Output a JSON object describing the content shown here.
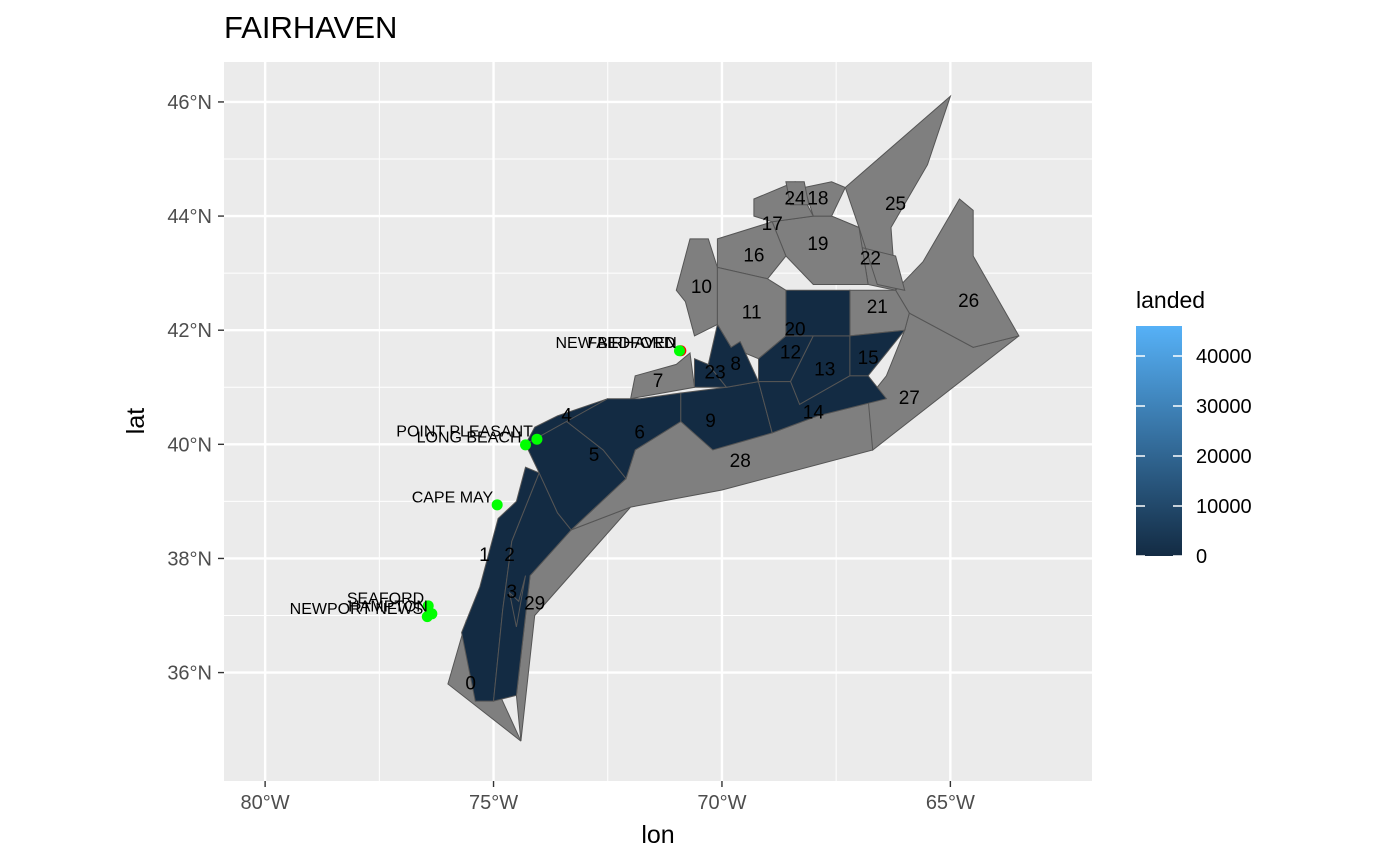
{
  "title": "FAIRHAVEN",
  "axes": {
    "xlabel": "lon",
    "ylabel": "lat",
    "xticks": [
      "80°W",
      "75°W",
      "70°W",
      "65°W"
    ],
    "yticks": [
      "36°N",
      "38°N",
      "40°N",
      "42°N",
      "44°N",
      "46°N"
    ],
    "xtick_values": [
      -80,
      -75,
      -70,
      -65
    ],
    "ytick_values": [
      36,
      38,
      40,
      42,
      44,
      46
    ],
    "xlim": [
      -80.9,
      -61.9
    ],
    "ylim": [
      34.1,
      46.7
    ]
  },
  "legend": {
    "title": "landed",
    "ticks": [
      "40000",
      "30000",
      "20000",
      "10000",
      "0"
    ],
    "tick_values": [
      40000,
      30000,
      20000,
      10000,
      0
    ],
    "range": [
      0,
      46000
    ],
    "color_low": "#132B43",
    "color_high": "#56B1F7"
  },
  "colors": {
    "panel_bg": "#EBEBEB",
    "grid": "#FFFFFF",
    "no_data_fill": "#7F7F7F",
    "area_border": "#555555",
    "home_port": "#FF0000",
    "other_port": "#00FF00"
  },
  "chart_data": {
    "type": "map",
    "title": "FAIRHAVEN",
    "xlabel": "lon",
    "ylabel": "lat",
    "grid": true,
    "legend_position": "right",
    "areas": [
      {
        "label": "0",
        "lon": -75.5,
        "lat": 35.8,
        "landed": null
      },
      {
        "label": "1",
        "lon": -75.2,
        "lat": 38.05,
        "landed": 0
      },
      {
        "label": "2",
        "lon": -74.65,
        "lat": 38.05,
        "landed": 0
      },
      {
        "label": "3",
        "lon": -74.6,
        "lat": 37.4,
        "landed": 0
      },
      {
        "label": "4",
        "lon": -73.4,
        "lat": 40.5,
        "landed": 0
      },
      {
        "label": "5",
        "lon": -72.8,
        "lat": 39.8,
        "landed": 0
      },
      {
        "label": "6",
        "lon": -71.8,
        "lat": 40.2,
        "landed": 0
      },
      {
        "label": "7",
        "lon": -71.4,
        "lat": 41.1,
        "landed": null
      },
      {
        "label": "8",
        "lon": -69.7,
        "lat": 41.4,
        "landed": 0
      },
      {
        "label": "9",
        "lon": -70.25,
        "lat": 40.4,
        "landed": 0
      },
      {
        "label": "10",
        "lon": -70.45,
        "lat": 42.75,
        "landed": null
      },
      {
        "label": "11",
        "lon": -69.35,
        "lat": 42.3,
        "landed": null
      },
      {
        "label": "12",
        "lon": -68.5,
        "lat": 41.6,
        "landed": 0
      },
      {
        "label": "13",
        "lon": -67.75,
        "lat": 41.3,
        "landed": 0
      },
      {
        "label": "14",
        "lon": -68.0,
        "lat": 40.55,
        "landed": 0
      },
      {
        "label": "15",
        "lon": -66.8,
        "lat": 41.5,
        "landed": 0
      },
      {
        "label": "16",
        "lon": -69.3,
        "lat": 43.3,
        "landed": null
      },
      {
        "label": "17",
        "lon": -68.9,
        "lat": 43.85,
        "landed": null
      },
      {
        "label": "18",
        "lon": -67.9,
        "lat": 44.3,
        "landed": null
      },
      {
        "label": "19",
        "lon": -67.9,
        "lat": 43.5,
        "landed": null
      },
      {
        "label": "20",
        "lon": -68.4,
        "lat": 42.0,
        "landed": 0
      },
      {
        "label": "21",
        "lon": -66.6,
        "lat": 42.4,
        "landed": null
      },
      {
        "label": "22",
        "lon": -66.75,
        "lat": 43.25,
        "landed": null
      },
      {
        "label": "23",
        "lon": -70.15,
        "lat": 41.25,
        "landed": 0
      },
      {
        "label": "24",
        "lon": -68.4,
        "lat": 44.3,
        "landed": null
      },
      {
        "label": "25",
        "lon": -66.2,
        "lat": 44.2,
        "landed": null
      },
      {
        "label": "26",
        "lon": -64.6,
        "lat": 42.5,
        "landed": null
      },
      {
        "label": "27",
        "lon": -65.9,
        "lat": 40.8,
        "landed": null
      },
      {
        "label": "28",
        "lon": -69.6,
        "lat": 39.7,
        "landed": null
      },
      {
        "label": "29",
        "lon": -74.1,
        "lat": 37.2,
        "landed": null
      }
    ],
    "ports": [
      {
        "name": "FAIRHAVEN",
        "lon": -70.9,
        "lat": 41.64,
        "home": true
      },
      {
        "name": "NEW BEDFORD",
        "lon": -70.93,
        "lat": 41.64,
        "home": false
      },
      {
        "name": "POINT PLEASANT",
        "lon": -74.05,
        "lat": 40.09,
        "home": false
      },
      {
        "name": "LONG BEACH",
        "lon": -74.3,
        "lat": 39.99,
        "home": false
      },
      {
        "name": "CAPE MAY",
        "lon": -74.92,
        "lat": 38.94,
        "home": false
      },
      {
        "name": "SEAFORD",
        "lon": -76.43,
        "lat": 37.17,
        "home": false
      },
      {
        "name": "HAMPTON",
        "lon": -76.35,
        "lat": 37.03,
        "home": false
      },
      {
        "name": "NEWPORT NEWS",
        "lon": -76.45,
        "lat": 36.98,
        "home": false
      }
    ]
  }
}
